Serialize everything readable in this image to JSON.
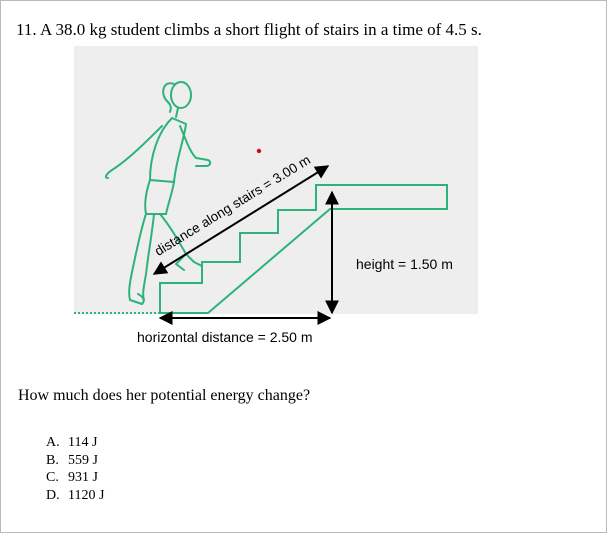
{
  "question": {
    "number": "11.",
    "text": "A 38.0 kg student climbs a short flight of stairs in a time of 4.5 s."
  },
  "figure": {
    "diagonal_label": "distance along stairs = 3.00 m",
    "height_label": "height = 1.50 m",
    "horizontal_label": "horizontal distance = 2.50 m",
    "colors": {
      "stairs": "#2db37a",
      "figure": "#2db37a",
      "arrow": "#000000",
      "dot": "#e0001a",
      "background": "#eeeeee",
      "ground_dots": "#2db37a"
    }
  },
  "prompt": "How much does her potential energy change?",
  "choices": [
    {
      "letter": "A.",
      "text": "114 J"
    },
    {
      "letter": "B.",
      "text": "559 J"
    },
    {
      "letter": "C.",
      "text": "931 J"
    },
    {
      "letter": "D.",
      "text": "1120 J"
    }
  ]
}
